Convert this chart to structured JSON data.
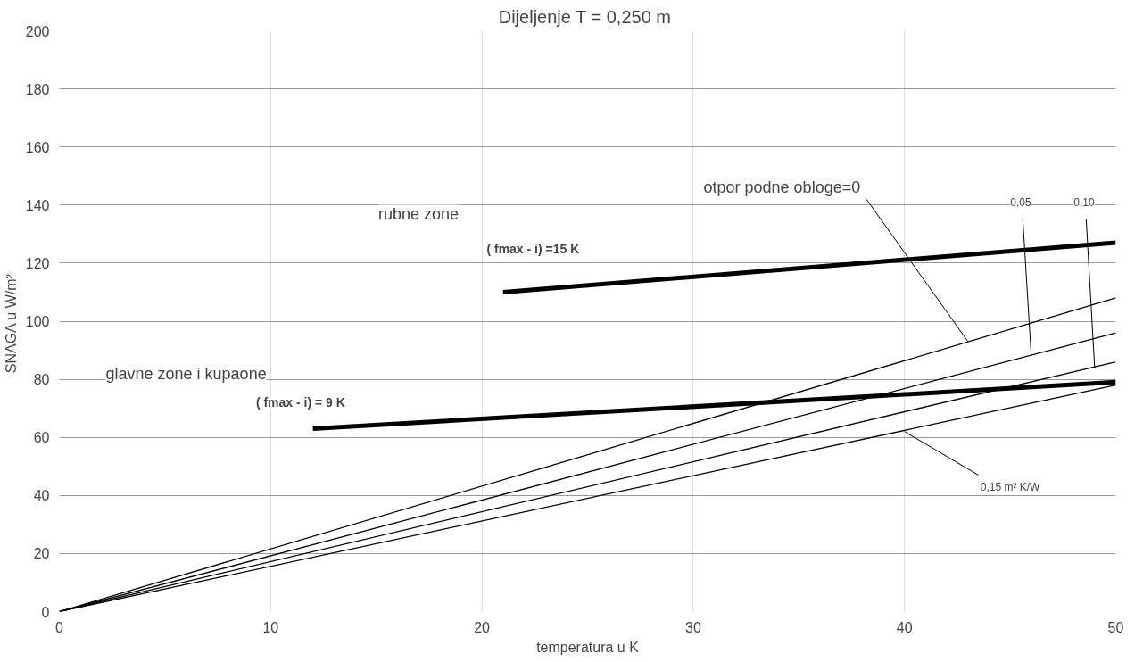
{
  "chart_data": {
    "type": "line",
    "title": "Dijeljenje  T = 0,250 m",
    "xlabel": "temperatura u K",
    "ylabel": "SNAGA u  W/m²",
    "xlim": [
      0,
      50
    ],
    "ylim": [
      0,
      200
    ],
    "xticks": [
      0,
      10,
      20,
      30,
      40,
      50
    ],
    "yticks": [
      0,
      20,
      40,
      60,
      80,
      100,
      120,
      140,
      160,
      180,
      200
    ],
    "grid": true,
    "line_style": "solid",
    "series": [
      {
        "color": "#000000",
        "x": [
          0,
          50
        ],
        "values": [
          0,
          108
        ]
      },
      {
        "color": "#000000",
        "x": [
          0,
          50
        ],
        "values": [
          0,
          96
        ]
      },
      {
        "color": "#000000",
        "x": [
          0,
          50
        ],
        "values": [
          0,
          86
        ]
      },
      {
        "color": "#000000",
        "x": [
          0,
          50
        ],
        "values": [
          0,
          78
        ]
      },
      {
        "color": "#000000",
        "x": [
          21,
          50
        ],
        "values": [
          110,
          127
        ]
      },
      {
        "color": "#000000",
        "x": [
          12,
          50
        ],
        "values": [
          63,
          79
        ]
      }
    ],
    "annotations": [
      {
        "text": "otpor podne obloge=0",
        "x": 43,
        "y": 93
      },
      {
        "text": "0,05",
        "x": 46,
        "y": 88
      },
      {
        "text": "0,10",
        "x": 49,
        "y": 84
      },
      {
        "text": "0,15 m² K/W",
        "x": 40,
        "y": 62
      },
      "rubne zone",
      "( fmax -  i) =15 K",
      "glavne zone i kupaone",
      "( fmax -  i) = 9 K"
    ]
  }
}
